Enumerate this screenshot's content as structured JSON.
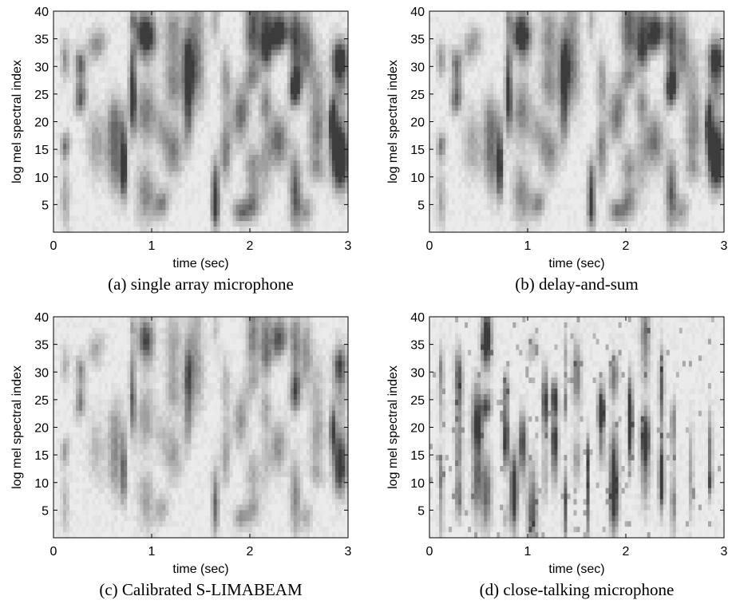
{
  "chart_data": [
    {
      "type": "heatmap",
      "caption": "(a) single array microphone",
      "xlabel": "time (sec)",
      "ylabel": "log mel spectral index",
      "xlim": [
        0,
        3
      ],
      "ylim": [
        0,
        40
      ],
      "xticks": [
        "0",
        "1",
        "2",
        "3"
      ],
      "yticks": [
        "5",
        "10",
        "15",
        "20",
        "25",
        "30",
        "35",
        "40"
      ],
      "colormap": "grayscale (dark = high energy)",
      "seed": 11,
      "darkness": 1.0,
      "sharpness": 0.0
    },
    {
      "type": "heatmap",
      "caption": "(b) delay-and-sum",
      "xlabel": "time (sec)",
      "ylabel": "log mel spectral index",
      "xlim": [
        0,
        3
      ],
      "ylim": [
        0,
        40
      ],
      "xticks": [
        "0",
        "1",
        "2",
        "3"
      ],
      "yticks": [
        "5",
        "10",
        "15",
        "20",
        "25",
        "30",
        "35",
        "40"
      ],
      "colormap": "grayscale (dark = high energy)",
      "seed": 11,
      "darkness": 0.95,
      "sharpness": 0.1
    },
    {
      "type": "heatmap",
      "caption": "(c) Calibrated S-LIMABEAM",
      "xlabel": "time (sec)",
      "ylabel": "log mel spectral index",
      "xlim": [
        0,
        3
      ],
      "ylim": [
        0,
        40
      ],
      "xticks": [
        "0",
        "1",
        "2",
        "3"
      ],
      "yticks": [
        "5",
        "10",
        "15",
        "20",
        "25",
        "30",
        "35",
        "40"
      ],
      "colormap": "grayscale (dark = high energy)",
      "seed": 11,
      "darkness": 0.7,
      "sharpness": 0.3
    },
    {
      "type": "heatmap",
      "caption": "(d) close-talking microphone",
      "xlabel": "time (sec)",
      "ylabel": "log mel spectral index",
      "xlim": [
        0,
        3
      ],
      "ylim": [
        0,
        40
      ],
      "xticks": [
        "0",
        "1",
        "2",
        "3"
      ],
      "yticks": [
        "5",
        "10",
        "15",
        "20",
        "25",
        "30",
        "35",
        "40"
      ],
      "colormap": "grayscale (dark = high energy)",
      "seed": 11,
      "darkness": 1.05,
      "sharpness": 1.0
    }
  ]
}
